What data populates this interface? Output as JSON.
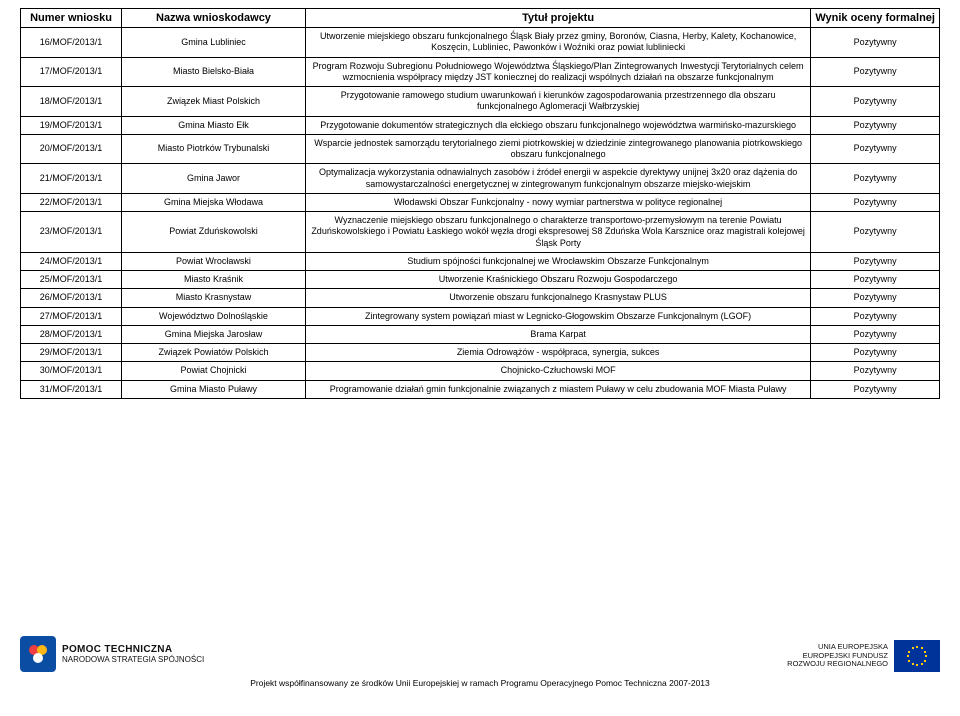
{
  "table": {
    "headers": [
      "Numer wniosku",
      "Nazwa wnioskodawcy",
      "Tytuł projektu",
      "Wynik oceny formalnej"
    ],
    "col_bg": "#ffffff",
    "border_color": "#000000",
    "header_fontsize": 11,
    "cell_fontsize": 9,
    "rows": [
      {
        "num": "16/MOF/2013/1",
        "name": "Gmina Lubliniec",
        "title": "Utworzenie miejskiego obszaru funkcjonalnego Śląsk Biały przez gminy, Boronów, Ciasna, Herby, Kalety, Kochanowice, Koszęcin, Lubliniec, Pawonków i Woźniki oraz powiat lubliniecki",
        "result": "Pozytywny"
      },
      {
        "num": "17/MOF/2013/1",
        "name": "Miasto Bielsko-Biała",
        "title": "Program Rozwoju Subregionu Południowego Województwa Śląskiego/Plan Zintegrowanych Inwestycji Terytorialnych celem wzmocnienia współpracy między JST koniecznej do realizacji wspólnych działań na obszarze funkcjonalnym",
        "result": "Pozytywny"
      },
      {
        "num": "18/MOF/2013/1",
        "name": "Związek Miast Polskich",
        "title": "Przygotowanie ramowego studium uwarunkowań i kierunków zagospodarowania przestrzennego dla obszaru funkcjonalnego Aglomeracji Wałbrzyskiej",
        "result": "Pozytywny"
      },
      {
        "num": "19/MOF/2013/1",
        "name": "Gmina Miasto Ełk",
        "title": "Przygotowanie dokumentów strategicznych dla ełckiego obszaru funkcjonalnego województwa warmińsko-mazurskiego",
        "result": "Pozytywny"
      },
      {
        "num": "20/MOF/2013/1",
        "name": "Miasto Piotrków Trybunalski",
        "title": "Wsparcie jednostek samorządu terytorialnego ziemi piotrkowskiej w dziedzinie zintegrowanego planowania piotrkowskiego obszaru funkcjonalnego",
        "result": "Pozytywny"
      },
      {
        "num": "21/MOF/2013/1",
        "name": "Gmina Jawor",
        "title": "Optymalizacja wykorzystania odnawialnych zasobów i źródeł energii w aspekcie dyrektywy unijnej 3x20 oraz dążenia do samowystarczalności energetycznej w zintegrowanym funkcjonalnym obszarze miejsko-wiejskim",
        "result": "Pozytywny"
      },
      {
        "num": "22/MOF/2013/1",
        "name": "Gmina Miejska Włodawa",
        "title": "Włodawski Obszar Funkcjonalny - nowy wymiar partnerstwa w polityce regionalnej",
        "result": "Pozytywny"
      },
      {
        "num": "23/MOF/2013/1",
        "name": "Powiat Zduńskowolski",
        "title": "Wyznaczenie miejskiego obszaru funkcjonalnego o charakterze transportowo-przemysłowym na terenie Powiatu Zduńskowolskiego i Powiatu Łaskiego wokół węzła drogi ekspresowej S8 Zduńska Wola Karsznice oraz magistrali kolejowej Śląsk Porty",
        "result": "Pozytywny"
      },
      {
        "num": "24/MOF/2013/1",
        "name": "Powiat Wrocławski",
        "title": "Studium spójności funkcjonalnej we Wrocławskim Obszarze Funkcjonalnym",
        "result": "Pozytywny"
      },
      {
        "num": "25/MOF/2013/1",
        "name": "Miasto Kraśnik",
        "title": "Utworzenie Kraśnickiego Obszaru Rozwoju Gospodarczego",
        "result": "Pozytywny"
      },
      {
        "num": "26/MOF/2013/1",
        "name": "Miasto Krasnystaw",
        "title": "Utworzenie obszaru funkcjonalnego Krasnystaw PLUS",
        "result": "Pozytywny"
      },
      {
        "num": "27/MOF/2013/1",
        "name": "Województwo Dolnośląskie",
        "title": "Zintegrowany system powiązań miast w Legnicko-Głogowskim Obszarze Funkcjonalnym (LGOF)",
        "result": "Pozytywny"
      },
      {
        "num": "28/MOF/2013/1",
        "name": "Gmina Miejska Jarosław",
        "title": "Brama Karpat",
        "result": "Pozytywny"
      },
      {
        "num": "29/MOF/2013/1",
        "name": "Związek Powiatów Polskich",
        "title": "Ziemia Odrowążów - współpraca, synergia, sukces",
        "result": "Pozytywny"
      },
      {
        "num": "30/MOF/2013/1",
        "name": "Powiat Chojnicki",
        "title": "Chojnicko-Człuchowski MOF",
        "result": "Pozytywny"
      },
      {
        "num": "31/MOF/2013/1",
        "name": "Gmina Miasto Puławy",
        "title": "Programowanie działań gmin funkcjonalnie związanych z miastem Puławy w celu zbudowania MOF Miasta Puławy",
        "result": "Pozytywny"
      }
    ]
  },
  "footer": {
    "logo_left_top": "POMOC TECHNICZNA",
    "logo_left_bot": "NARODOWA STRATEGIA SPÓJNOŚCI",
    "logo_right_l1": "UNIA EUROPEJSKA",
    "logo_right_l2": "EUROPEJSKI FUNDUSZ",
    "logo_right_l3": "ROZWOJU REGIONALNEGO",
    "line": "Projekt współfinansowany ze środków Unii Europejskiej w ramach Programu Operacyjnego Pomoc Techniczna 2007-2013",
    "pt_color": "#0b4da2",
    "eu_blue": "#003399",
    "eu_gold": "#ffcc00"
  }
}
